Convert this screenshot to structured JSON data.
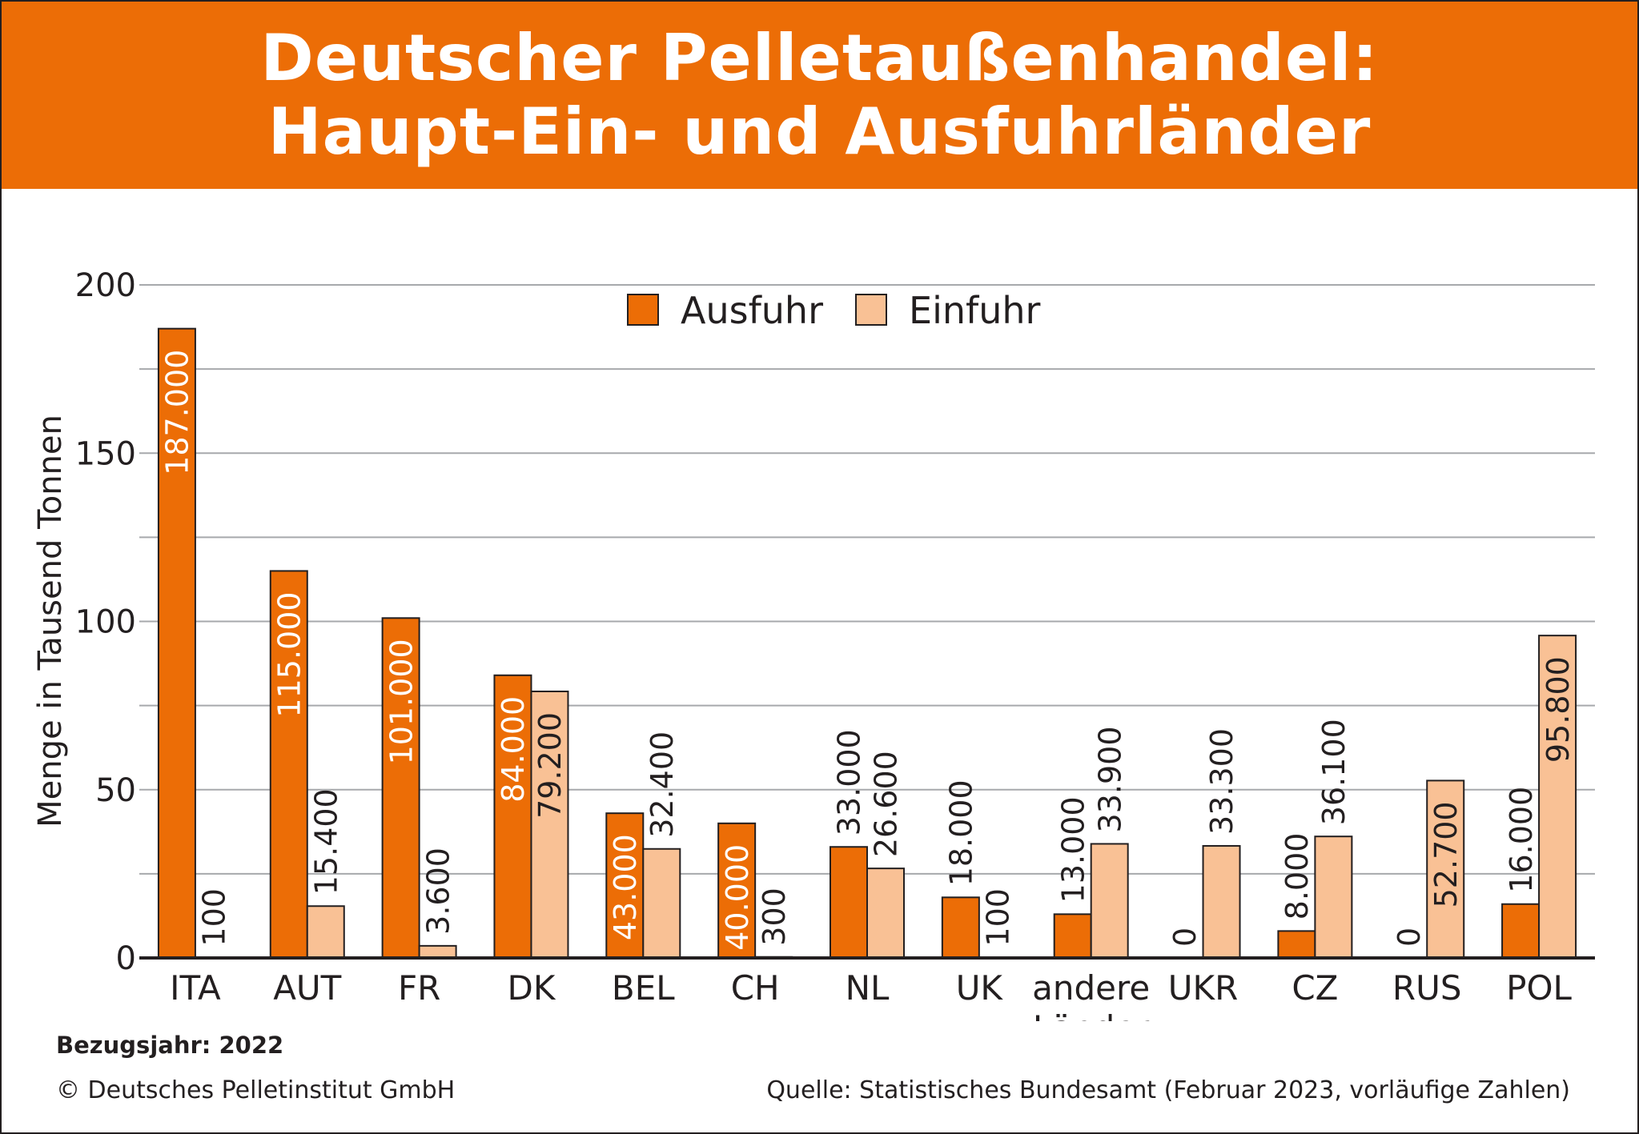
{
  "title": {
    "line1": "Deutscher Pelletaußenhandel:",
    "line2": "Haupt-Ein- und Ausfuhrländer"
  },
  "footer": {
    "reference_year": "Bezugsjahr: 2022",
    "copyright": "© Deutsches Pelletinstitut GmbH",
    "source": "Quelle: Statistisches Bundesamt (Februar 2023, vorläufige Zahlen)"
  },
  "colors": {
    "accent": "#ec6d06",
    "ausfuhr": "#ec6d06",
    "einfuhr": "#f9c195",
    "axis": "#231f20",
    "grid": "#a7a9ac"
  },
  "chart_data": {
    "type": "bar",
    "title": "Deutscher Pelletaußenhandel: Haupt-Ein- und Ausfuhrländer",
    "ylabel": "Menge in Tausend Tonnen",
    "xlabel": "",
    "ylim": [
      0,
      200
    ],
    "yticks": [
      0,
      50,
      100,
      150,
      200
    ],
    "grid": true,
    "legend": "top-center",
    "categories": [
      "ITA",
      "AUT",
      "FR",
      "DK",
      "BEL",
      "CH",
      "NL",
      "UK",
      "andere Länder",
      "UKR",
      "CZ",
      "RUS",
      "POL"
    ],
    "series": [
      {
        "name": "Ausfuhr",
        "values": [
          187,
          115,
          101,
          84,
          43,
          40,
          33,
          18,
          13,
          0,
          8,
          0,
          16
        ],
        "labels": [
          "187.000",
          "115.000",
          "101.000",
          "84.000",
          "43.000",
          "40.000",
          "33.000",
          "18.000",
          "13.000",
          "0",
          "8.000",
          "0",
          "16.000"
        ]
      },
      {
        "name": "Einfuhr",
        "values": [
          0.1,
          15.4,
          3.6,
          79.2,
          32.4,
          0.3,
          26.6,
          0.1,
          33.9,
          33.3,
          36.1,
          52.7,
          95.8
        ],
        "labels": [
          "100",
          "15.400",
          "3.600",
          "79.200",
          "32.400",
          "300",
          "26.600",
          "100",
          "33.900",
          "33.300",
          "36.100",
          "52.700",
          "95.800"
        ]
      }
    ]
  }
}
